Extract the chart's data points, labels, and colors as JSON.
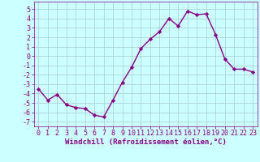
{
  "x": [
    0,
    1,
    2,
    3,
    4,
    5,
    6,
    7,
    8,
    9,
    10,
    11,
    12,
    13,
    14,
    15,
    16,
    17,
    18,
    19,
    20,
    21,
    22,
    23
  ],
  "y": [
    -3.5,
    -4.7,
    -4.1,
    -5.2,
    -5.5,
    -5.6,
    -6.3,
    -6.5,
    -4.7,
    -2.8,
    -1.2,
    0.8,
    1.8,
    2.6,
    4.0,
    3.2,
    4.8,
    4.4,
    4.5,
    2.3,
    -0.3,
    -1.4,
    -1.4,
    -1.7
  ],
  "line_color": "#880088",
  "marker": "D",
  "marker_size": 2.2,
  "line_width": 1.0,
  "background_color": "#ccffff",
  "grid_color": "#aacccc",
  "xlabel": "Windchill (Refroidissement éolien,°C)",
  "xlabel_fontsize": 6.5,
  "tick_label_color": "#880088",
  "tick_fontsize": 6.0,
  "ylim": [
    -7.5,
    5.8
  ],
  "xlim": [
    -0.5,
    23.5
  ],
  "yticks": [
    -7,
    -6,
    -5,
    -4,
    -3,
    -2,
    -1,
    0,
    1,
    2,
    3,
    4,
    5
  ],
  "xticks": [
    0,
    1,
    2,
    3,
    4,
    5,
    6,
    7,
    8,
    9,
    10,
    11,
    12,
    13,
    14,
    15,
    16,
    17,
    18,
    19,
    20,
    21,
    22,
    23
  ]
}
